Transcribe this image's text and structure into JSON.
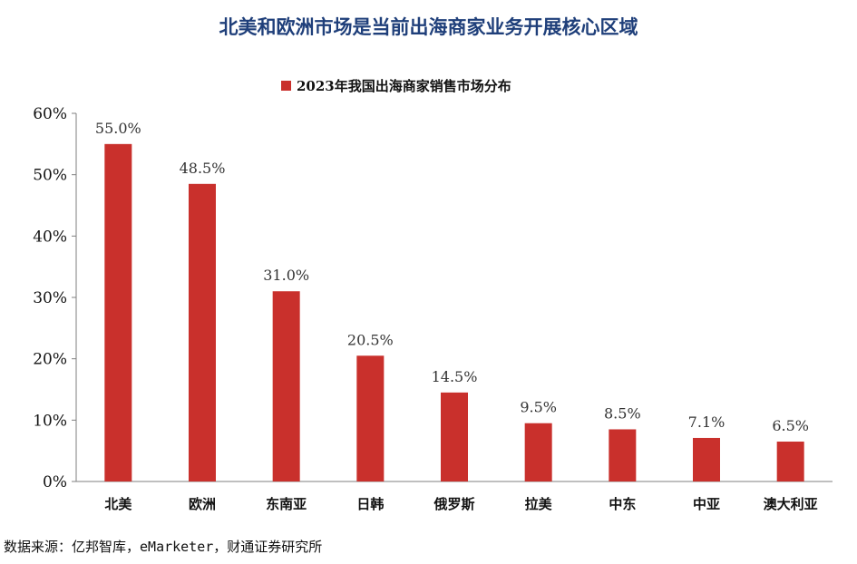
{
  "page": {
    "title": "北美和欧洲市场是当前出海商家业务开展核心区域",
    "source": "数据来源：亿邦智库，eMarketer，财通证券研究所"
  },
  "chart_data": {
    "type": "bar",
    "title": "",
    "legend": {
      "label": "2023年我国出海商家销售市场分布",
      "position": "top-center"
    },
    "categories": [
      "北美",
      "欧洲",
      "东南亚",
      "日韩",
      "俄罗斯",
      "拉美",
      "中东",
      "中亚",
      "澳大利亚"
    ],
    "series": [
      {
        "name": "2023年我国出海商家销售市场分布",
        "values": [
          55.0,
          48.5,
          31.0,
          20.5,
          14.5,
          9.5,
          8.5,
          7.1,
          6.5
        ],
        "labels": [
          "55.0%",
          "48.5%",
          "31.0%",
          "20.5%",
          "14.5%",
          "9.5%",
          "8.5%",
          "7.1%",
          "6.5%"
        ],
        "color": "#c9302c"
      }
    ],
    "ylim": [
      0,
      60
    ],
    "yticks": [
      0,
      10,
      20,
      30,
      40,
      50,
      60
    ],
    "ytick_labels": [
      "0%",
      "10%",
      "20%",
      "30%",
      "40%",
      "50%",
      "60%"
    ],
    "xlabel": "",
    "ylabel": "",
    "grid": false
  }
}
